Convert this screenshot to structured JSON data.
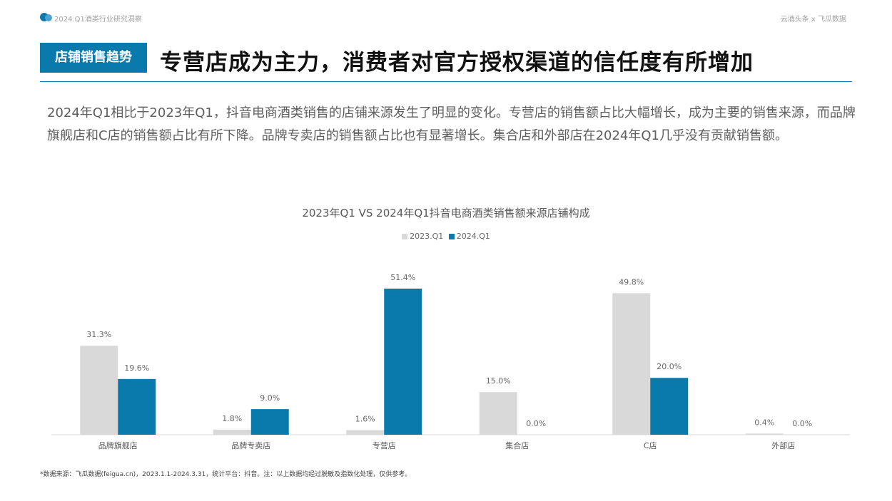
{
  "header": {
    "report_name": "2024.Q1酒类行业研究洞察",
    "brand": "云酒头条 x 飞瓜数据",
    "tag": "店铺销售趋势",
    "title": "专营店成为主力，消费者对官方授权渠道的信任度有所增加"
  },
  "summary": "2024年Q1相比于2023年Q1，抖音电商酒类销售的店铺来源发生了明显的变化。专营店的销售额占比大幅增长，成为主要的销售来源，而品牌旗舰店和C店的销售额占比有所下降。品牌专卖店的销售额占比也有显著增长。集合店和外部店在2024年Q1几乎没有贡献销售额。",
  "chart_data": {
    "type": "bar",
    "title": "2023年Q1 VS 2024年Q1抖音电商酒类销售额来源店铺构成",
    "categories": [
      "品牌旗舰店",
      "品牌专卖店",
      "专营店",
      "集合店",
      "C店",
      "外部店"
    ],
    "series": [
      {
        "name": "2023.Q1",
        "color": "#d9d9d9",
        "values": [
          31.3,
          1.8,
          1.6,
          15.0,
          49.8,
          0.4
        ],
        "labels": [
          "31.3%",
          "1.8%",
          "1.6%",
          "15.0%",
          "49.8%",
          "0.4%"
        ]
      },
      {
        "name": "2024.Q1",
        "color": "#0a7aad",
        "values": [
          19.6,
          9.0,
          51.4,
          0.0,
          20.0,
          0.0
        ],
        "labels": [
          "19.6%",
          "9.0%",
          "51.4%",
          "0.0%",
          "20.0%",
          "0.0%"
        ]
      }
    ],
    "ylim": [
      0,
      51.4
    ],
    "legend_position": "top-center",
    "grid": false
  },
  "footnote": "*数据来源：飞瓜数据(feigua.cn)，2023.1.1-2024.3.31，统计平台：抖音。注：以上数据均经过脱敏及指数化处理，仅供参考。",
  "colors": {
    "accent": "#0a7aad",
    "light": "#d9d9d9"
  }
}
